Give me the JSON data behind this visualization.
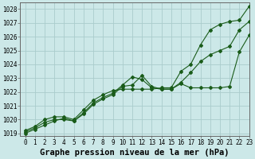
{
  "title": "Graphe pression niveau de la mer (hPa)",
  "bg_color": "#cce8e8",
  "grid_color": "#aacccc",
  "line_color": "#1a5c1a",
  "xlim": [
    -0.5,
    23
  ],
  "ylim": [
    1018.8,
    1028.5
  ],
  "yticks": [
    1019,
    1020,
    1021,
    1022,
    1023,
    1024,
    1025,
    1026,
    1027,
    1028
  ],
  "xticks": [
    0,
    1,
    2,
    3,
    4,
    5,
    6,
    7,
    8,
    9,
    10,
    11,
    12,
    13,
    14,
    15,
    16,
    17,
    18,
    19,
    20,
    21,
    22,
    23
  ],
  "series1_x": [
    0,
    1,
    2,
    3,
    4,
    5,
    6,
    7,
    8,
    9,
    10,
    11,
    12,
    13,
    14,
    15,
    16,
    17,
    18,
    19,
    20,
    21,
    22,
    23
  ],
  "series1_y": [
    1019.2,
    1019.5,
    1020.0,
    1020.2,
    1020.2,
    1020.0,
    1020.7,
    1021.4,
    1021.8,
    1022.1,
    1022.2,
    1022.2,
    1022.2,
    1022.2,
    1022.3,
    1022.3,
    1023.5,
    1024.0,
    1025.4,
    1026.5,
    1026.9,
    1027.1,
    1027.2,
    1028.2
  ],
  "series2_x": [
    0,
    1,
    2,
    3,
    4,
    5,
    6,
    7,
    8,
    9,
    10,
    11,
    12,
    13,
    14,
    15,
    16,
    17,
    18,
    19,
    20,
    21,
    22,
    23
  ],
  "series2_y": [
    1019.1,
    1019.4,
    1019.8,
    1020.0,
    1020.0,
    1019.9,
    1020.5,
    1021.2,
    1021.6,
    1021.9,
    1022.5,
    1023.1,
    1022.9,
    1022.3,
    1022.2,
    1022.2,
    1022.7,
    1023.4,
    1024.2,
    1024.7,
    1025.0,
    1025.3,
    1026.5,
    1027.1
  ],
  "series3_x": [
    0,
    1,
    2,
    3,
    4,
    5,
    6,
    7,
    8,
    9,
    10,
    11,
    12,
    13,
    14,
    15,
    16,
    17,
    18,
    19,
    20,
    21,
    22,
    23
  ],
  "series3_y": [
    1019.0,
    1019.3,
    1019.6,
    1019.9,
    1020.1,
    1019.9,
    1020.4,
    1021.1,
    1021.5,
    1021.8,
    1022.4,
    1022.5,
    1023.2,
    1022.4,
    1022.2,
    1022.2,
    1022.6,
    1022.3,
    1022.3,
    1022.3,
    1022.3,
    1022.4,
    1024.9,
    1026.1
  ],
  "title_fontsize": 7.5,
  "tick_fontsize": 5.5
}
